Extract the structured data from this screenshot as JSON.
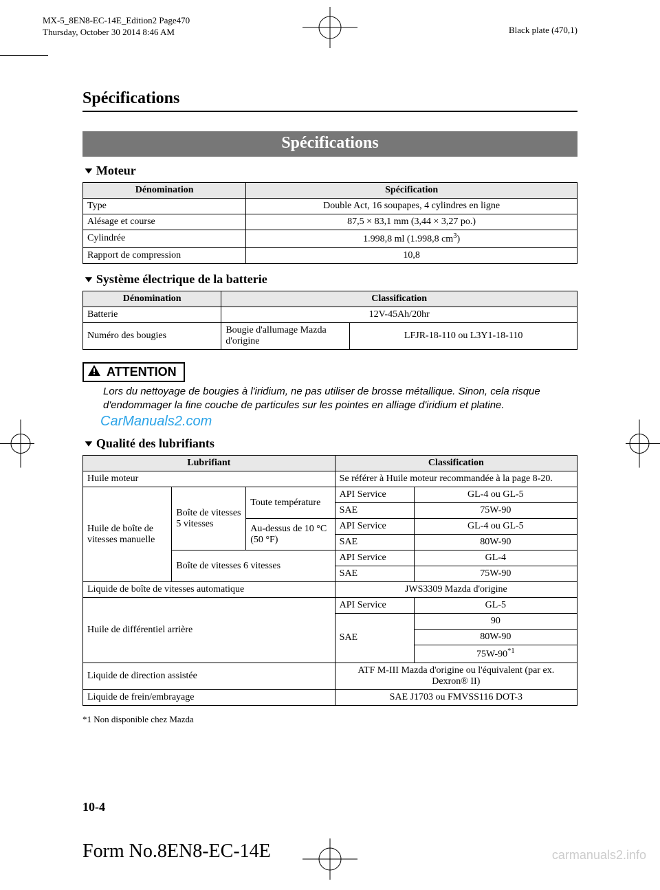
{
  "printMeta": {
    "line1": "MX-5_8EN8-EC-14E_Edition2 Page470",
    "line2": "Thursday, October 30 2014 8:46 AM",
    "right": "Black plate (470,1)"
  },
  "chapterTitle": "Spécifications",
  "sectionBar": "Spécifications",
  "engine": {
    "subhead": "Moteur",
    "headers": [
      "Dénomination",
      "Spécification"
    ],
    "rows": [
      {
        "name": "Type",
        "value": "Double Act, 16 soupapes, 4 cylindres en ligne"
      },
      {
        "name": "Alésage et course",
        "value": "87,5 × 83,1 mm (3,44 × 3,27 po.)"
      },
      {
        "name": "Cylindrée",
        "value_html": "1.998,8 ml (1.998,8 cm<sup>3</sup>)"
      },
      {
        "name": "Rapport de compression",
        "value": "10,8"
      }
    ],
    "col1_width": "33%"
  },
  "electrical": {
    "subhead": "Système électrique de la batterie",
    "headers": [
      "Dénomination",
      "Classification"
    ],
    "rows": {
      "r1": {
        "name": "Batterie",
        "value": "12V-45Ah/20hr"
      },
      "r2": {
        "name": "Numéro des bougies",
        "mid": "Bougie d'allumage Mazda d'origine",
        "value": "LFJR-18-110 ou L3Y1-18-110"
      }
    }
  },
  "attention": {
    "label": "ATTENTION",
    "text": "Lors du nettoyage de bougies à l'iridium, ne pas utiliser de brosse métallique. Sinon, cela risque d'endommager la fine couche de particules sur les pointes en alliage d'iridium et platine."
  },
  "watermark": "CarManuals2.com",
  "lubricants": {
    "subhead": "Qualité des lubrifiants",
    "headers": [
      "Lubrifiant",
      "Classification"
    ],
    "rows": {
      "engine_oil": {
        "name": "Huile moteur",
        "value": "Se référer à Huile moteur recommandée à la page 8-20."
      },
      "manual": {
        "name": "Huile de boîte de vitesses manuelle",
        "box5": "Boîte de vitesses 5 vitesses",
        "all_temp": "Toute température",
        "above10": "Au-dessus de 10 °C (50 °F)",
        "box6": "Boîte de vitesses 6 vitesses",
        "vals": {
          "a1": "API Service",
          "b1": "GL-4 ou GL-5",
          "a2": "SAE",
          "b2": "75W-90",
          "a3": "API Service",
          "b3": "GL-4 ou GL-5",
          "a4": "SAE",
          "b4": "80W-90",
          "a5": "API Service",
          "b5": "GL-4",
          "a6": "SAE",
          "b6": "75W-90"
        }
      },
      "auto": {
        "name": "Liquide de boîte de vitesses automatique",
        "value": "JWS3309 Mazda d'origine"
      },
      "diff": {
        "name": "Huile de différentiel arrière",
        "a1": "API Service",
        "b1": "GL-5",
        "a2": "SAE",
        "s1": "90",
        "s2": "80W-90",
        "s3_html": "75W-90<sup>*1</sup>"
      },
      "ps": {
        "name": "Liquide de direction assistée",
        "value": "ATF M-III Mazda d'origine ou l'équivalent (par ex. Dexron® II)"
      },
      "brake": {
        "name": "Liquide de frein/embrayage",
        "value": "SAE J1703 ou FMVSS116 DOT-3"
      }
    },
    "footnote": "*1 Non disponible chez Mazda"
  },
  "pageNum": "10-4",
  "formNo": "Form No.8EN8-EC-14E",
  "siteWatermark": "carmanuals2.info"
}
